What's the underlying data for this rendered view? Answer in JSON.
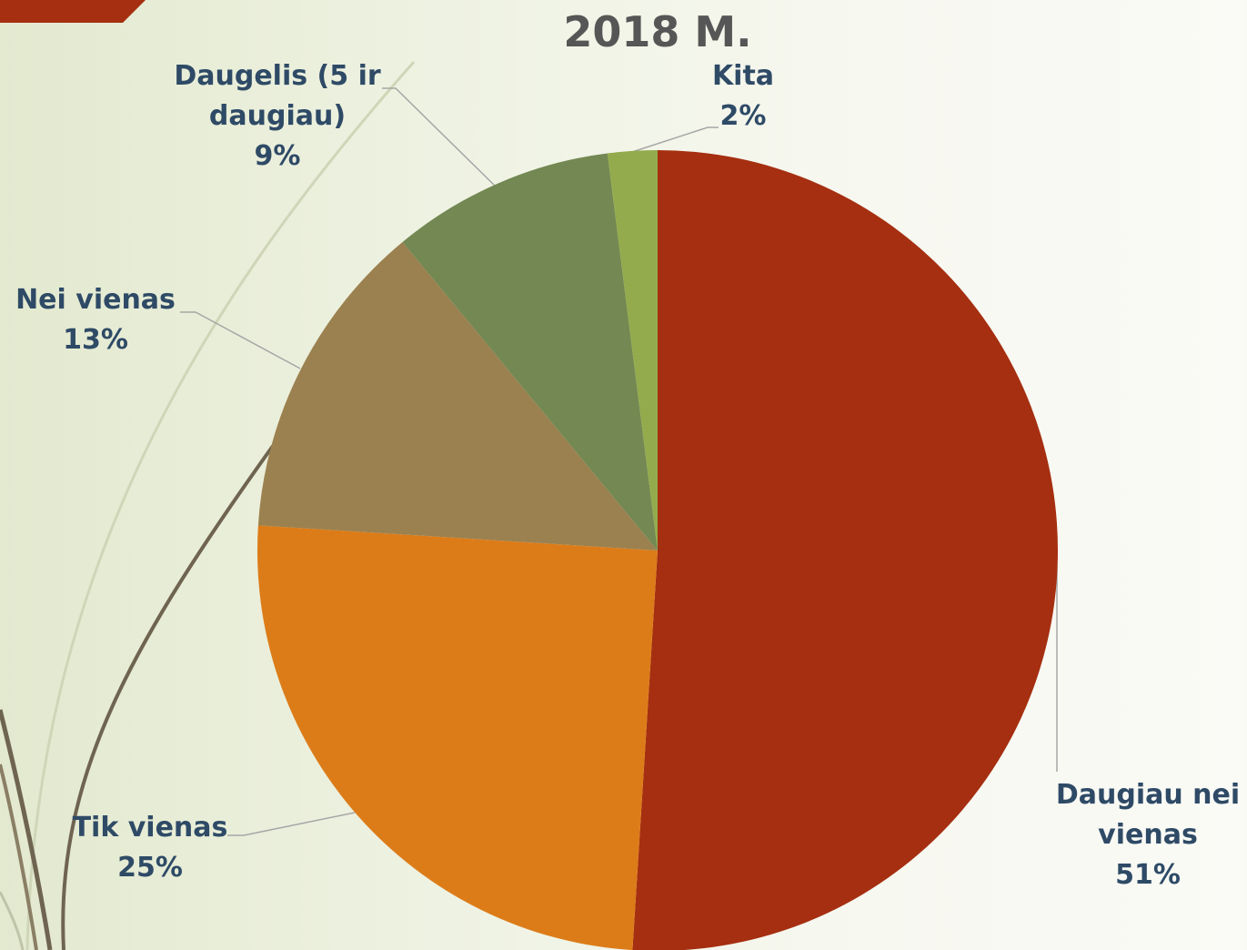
{
  "chart_data": {
    "type": "pie",
    "title": "2018 M.",
    "categories": [
      "Daugiau nei vienas",
      "Tik vienas",
      "Nei vienas",
      "Daugelis (5 ir daugiau)",
      "Kita"
    ],
    "values": [
      51,
      25,
      13,
      9,
      2
    ],
    "value_labels": [
      "51%",
      "25%",
      "13%",
      "9%",
      "2%"
    ],
    "colors": [
      "#a52f10",
      "#dc7c19",
      "#9c8150",
      "#738852",
      "#93ab4c"
    ]
  }
}
